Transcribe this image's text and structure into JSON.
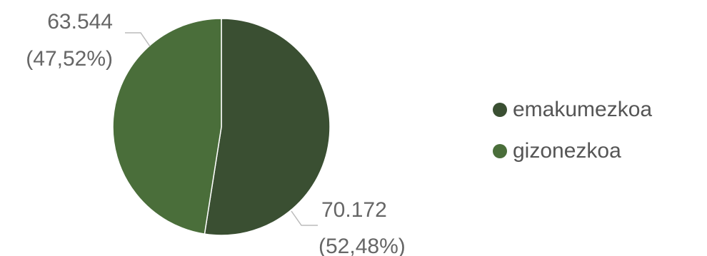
{
  "chart_data": {
    "type": "pie",
    "title": "",
    "legend_position": "right",
    "slices": [
      {
        "name": "emakumezkoa",
        "value": 70172,
        "value_label": "70.172",
        "percent_label": "(52,48%)",
        "color": "#3a4f32"
      },
      {
        "name": "gizonezkoa",
        "value": 63544,
        "value_label": "63.544",
        "percent_label": "(47,52%)",
        "color": "#4a6e3a"
      }
    ]
  }
}
